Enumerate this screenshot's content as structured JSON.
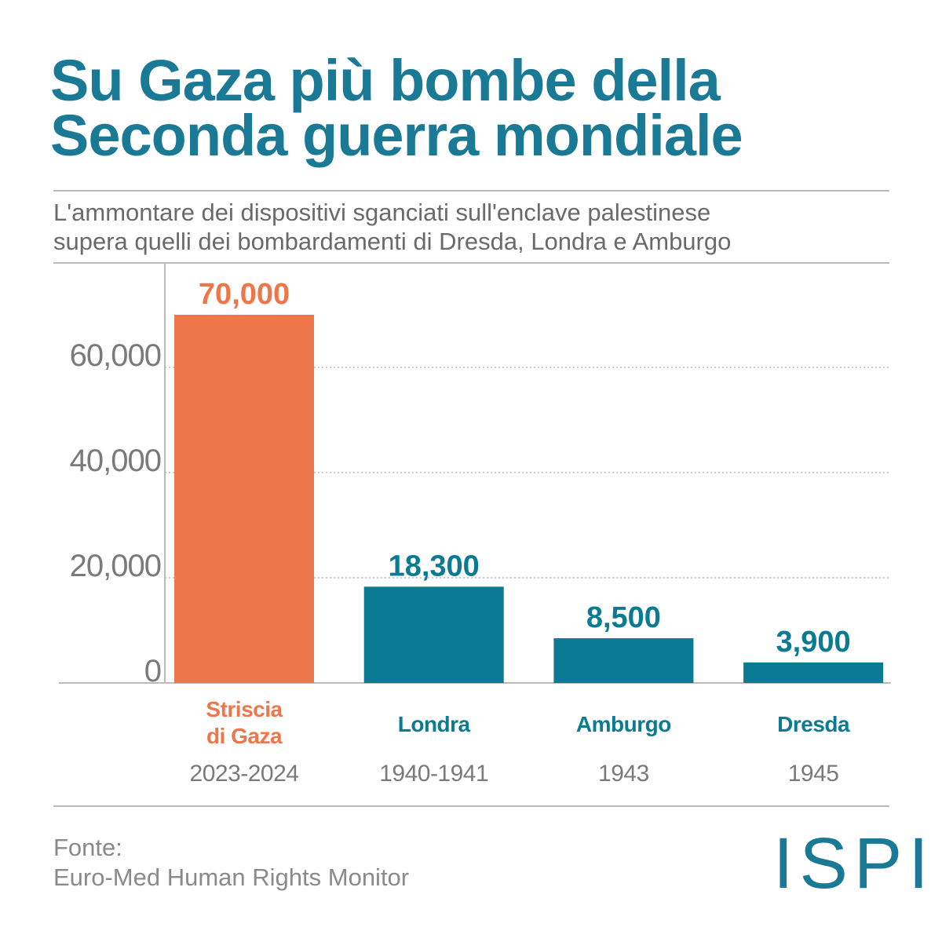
{
  "chart_data": {
    "type": "bar",
    "title": "Su Gaza più bombe della\nSeconda guerra mondiale",
    "subtitle": "L'ammontare dei dispositivi sganciati sull'enclave palestinese\nsupera quelli dei bombardamenti di Dresda, Londra e Amburgo",
    "categories": [
      "Striscia\ndi Gaza",
      "Londra",
      "Amburgo",
      "Dresda"
    ],
    "periods": [
      "2023-2024",
      "1940-1941",
      "1943",
      "1945"
    ],
    "values": [
      70000,
      18300,
      8500,
      3900
    ],
    "value_labels": [
      "70,000",
      "18,300",
      "8,500",
      "3,900"
    ],
    "colors": [
      "#ee764b",
      "#0b7b93",
      "#0b7b93",
      "#0b7b93"
    ],
    "ylim": [
      0,
      80000
    ],
    "yticks": [
      0,
      {
        "value": 20000,
        "label": "20,000"
      },
      {
        "value": 40000,
        "label": "40,000"
      },
      {
        "value": 60000,
        "label": "60,000"
      }
    ],
    "grid": true,
    "source_label": "Fonte:",
    "source": "Euro-Med Human Rights Monitor",
    "logo": "ISPI"
  }
}
